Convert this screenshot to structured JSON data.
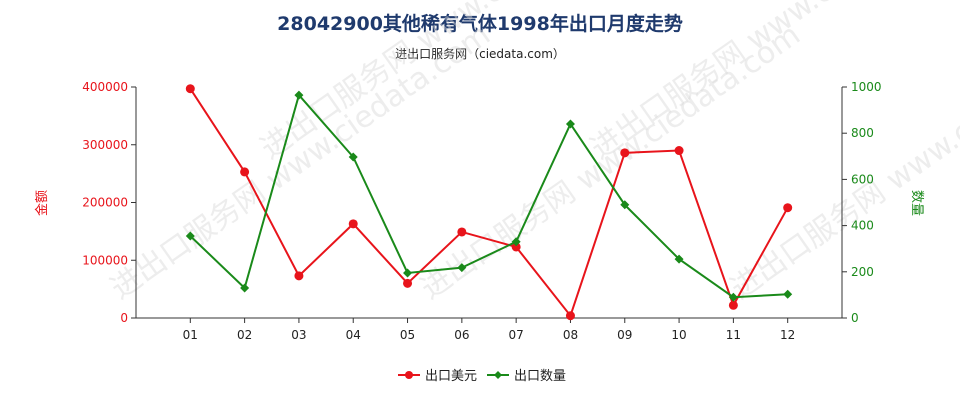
{
  "header": {
    "title": "28042900其他稀有气体1998年出口月度走势",
    "subtitle": "进出口服务网（ciedata.com）"
  },
  "watermark": "进出口服务网 www.ciedata.com",
  "colors": {
    "amount": "#e8141b",
    "quantity": "#1a8a1a",
    "axis": "#333333",
    "title": "#1f3a6d"
  },
  "chart_data": {
    "type": "line",
    "categories": [
      "01",
      "02",
      "03",
      "04",
      "05",
      "06",
      "07",
      "08",
      "09",
      "10",
      "11",
      "12"
    ],
    "series": [
      {
        "name": "出口美元",
        "axis": "left",
        "values": [
          397000,
          253000,
          73000,
          163000,
          60000,
          149000,
          123000,
          4000,
          286000,
          290000,
          22000,
          191000
        ]
      },
      {
        "name": "出口数量",
        "axis": "right",
        "values": [
          355,
          130,
          965,
          697,
          195,
          218,
          330,
          840,
          490,
          255,
          90,
          103
        ]
      }
    ],
    "y_left": {
      "label": "金额",
      "min": 0,
      "max": 400000,
      "ticks": [
        "0",
        "100000",
        "200000",
        "300000",
        "400000"
      ]
    },
    "y_right": {
      "label": "数量",
      "min": 0,
      "max": 1000,
      "ticks": [
        "0",
        "200",
        "400",
        "600",
        "800",
        "1000"
      ]
    },
    "legend_position": "bottom-center",
    "grid": false
  }
}
